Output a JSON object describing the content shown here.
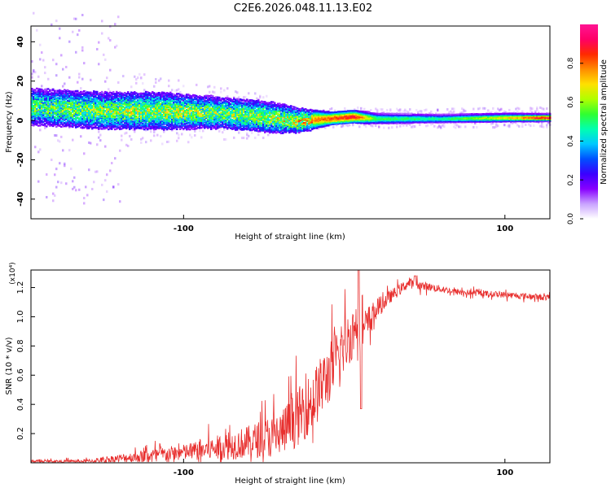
{
  "title": "C2E6.2026.048.11.13.E02",
  "chart_data": [
    {
      "type": "heatmap",
      "panel": "spectrogram",
      "xlabel": "Height of straight line (km)",
      "ylabel": "Frequency (Hz)",
      "xlim": [
        -195,
        128
      ],
      "ylim": [
        -50,
        48
      ],
      "xticks": [
        -100,
        100
      ],
      "yticks": [
        -40,
        -20,
        0,
        20,
        40
      ],
      "colorbar": {
        "label": "Normalized spectral amplitude",
        "range": [
          0,
          1
        ],
        "ticks": [
          "0.0",
          "0.2",
          "0.4",
          "0.6",
          "0.8"
        ],
        "tick_values": [
          0,
          0.2,
          0.4,
          0.6,
          0.8
        ],
        "colors": [
          "#ffffff",
          "#c9a2ff",
          "#8800ff",
          "#3a00ff",
          "#0050ff",
          "#00c8ff",
          "#00ffb0",
          "#30ff30",
          "#b0ff00",
          "#ffe000",
          "#ff8c00",
          "#ff2a00",
          "#ff0066",
          "#ff1493"
        ]
      },
      "ridge": [
        {
          "x": -195,
          "center": 7,
          "spread": 6,
          "amp": 0.55
        },
        {
          "x": -150,
          "center": 5,
          "spread": 6,
          "amp": 0.6
        },
        {
          "x": -120,
          "center": 5,
          "spread": 6,
          "amp": 0.65
        },
        {
          "x": -80,
          "center": 4,
          "spread": 5,
          "amp": 0.6
        },
        {
          "x": -50,
          "center": 2,
          "spread": 5,
          "amp": 0.62
        },
        {
          "x": -30,
          "center": 0,
          "spread": 4,
          "amp": 0.7
        },
        {
          "x": -10,
          "center": 1,
          "spread": 2,
          "amp": 0.85
        },
        {
          "x": 5,
          "center": 2,
          "spread": 2,
          "amp": 0.9
        },
        {
          "x": 20,
          "center": 1,
          "spread": 1.5,
          "amp": 0.55
        },
        {
          "x": 60,
          "center": 1,
          "spread": 1.2,
          "amp": 0.5
        },
        {
          "x": 100,
          "center": 1.5,
          "spread": 1.2,
          "amp": 0.7
        },
        {
          "x": 128,
          "center": 1.5,
          "spread": 1,
          "amp": 0.95
        }
      ]
    },
    {
      "type": "line",
      "panel": "snr",
      "xlabel": "Height of straight line (km)",
      "ylabel": "SNR (10 * v/v)",
      "scale_label": "(x10⁴)",
      "color": "#e8302f",
      "xlim": [
        -195,
        128
      ],
      "ylim": [
        0,
        1.32
      ],
      "xticks": [
        -100,
        100
      ],
      "yticks": [
        0.2,
        0.4,
        0.6,
        0.8,
        1.0,
        1.2
      ],
      "ytick_labels": [
        "0.2",
        "0.4",
        "0.6",
        "0.8",
        "1.0",
        "1.2"
      ],
      "envelope": {
        "x": [
          -195,
          -160,
          -140,
          -120,
          -100,
          -80,
          -60,
          -40,
          -30,
          -20,
          -10,
          0,
          8,
          12,
          20,
          30,
          40,
          50,
          70,
          100,
          128
        ],
        "base": [
          0.01,
          0.01,
          0.03,
          0.05,
          0.07,
          0.1,
          0.14,
          0.2,
          0.3,
          0.42,
          0.6,
          0.8,
          0.95,
          0.9,
          1.05,
          1.15,
          1.23,
          1.21,
          1.17,
          1.15,
          1.13
        ],
        "amp": [
          0.01,
          0.02,
          0.04,
          0.07,
          0.08,
          0.12,
          0.16,
          0.22,
          0.28,
          0.3,
          0.3,
          0.28,
          0.25,
          0.22,
          0.1,
          0.06,
          0.05,
          0.04,
          0.03,
          0.03,
          0.03
        ]
      },
      "features": [
        {
          "x": 9,
          "y": 1.32,
          "kind": "peak"
        },
        {
          "x": 10.5,
          "y": 0.37,
          "kind": "dip"
        },
        {
          "x": 44,
          "y": 1.28,
          "kind": "peak"
        }
      ]
    }
  ]
}
